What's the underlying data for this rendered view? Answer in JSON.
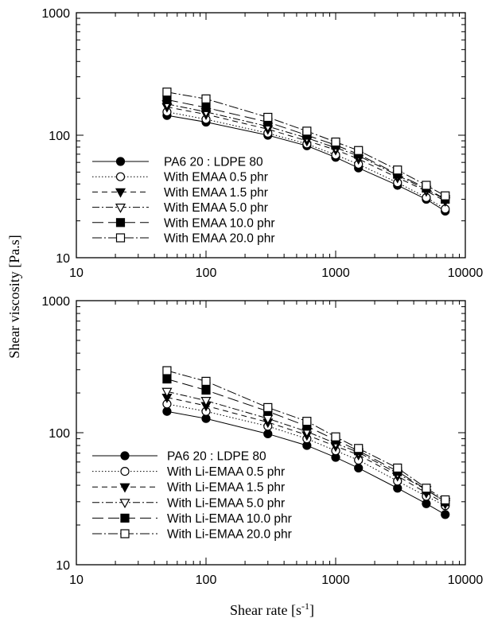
{
  "shared_axis": {
    "ylabel": "Shear viscosity [Pa.s]",
    "xlabel_main": "Shear rate [s",
    "xlabel_sup": "-1",
    "xlabel_end": "]"
  },
  "chart_data": [
    {
      "type": "line",
      "xscale": "log",
      "yscale": "log",
      "xlim": [
        10,
        10000
      ],
      "ylim": [
        10,
        1000
      ],
      "xticks": [
        "10",
        "100",
        "1000",
        "10000"
      ],
      "yticks": [
        "10",
        "100",
        "1000"
      ],
      "grid": false,
      "legend_position": "bottom-left",
      "x": [
        50,
        100,
        300,
        600,
        1000,
        1500,
        3000,
        5000,
        7000
      ],
      "series": [
        {
          "name": "PA6 20 : LDPE 80",
          "marker": "circle-filled",
          "dash": "solid",
          "values": [
            145,
            128,
            100,
            82,
            66,
            54,
            39,
            30,
            24
          ]
        },
        {
          "name": "With EMAA 0.5 phr",
          "marker": "circle-open",
          "dash": "dotted",
          "values": [
            155,
            135,
            104,
            85,
            69,
            58,
            41,
            31,
            25
          ]
        },
        {
          "name": "With EMAA 1.5 phr",
          "marker": "triangle-down-filled",
          "dash": "dashed",
          "values": [
            170,
            148,
            112,
            90,
            76,
            64,
            45,
            35,
            29
          ]
        },
        {
          "name": "With EMAA 5.0 phr",
          "marker": "triangle-down-open",
          "dash": "dashdot",
          "values": [
            180,
            155,
            118,
            95,
            79,
            68,
            47,
            36,
            30
          ]
        },
        {
          "name": "With EMAA 10.0 phr",
          "marker": "square-filled",
          "dash": "longdash",
          "values": [
            195,
            168,
            128,
            100,
            83,
            70,
            48,
            37,
            30
          ]
        },
        {
          "name": "With EMAA 20.0 phr",
          "marker": "square-open",
          "dash": "dashdotlong",
          "values": [
            225,
            198,
            140,
            108,
            88,
            75,
            52,
            39,
            32
          ]
        }
      ]
    },
    {
      "type": "line",
      "xscale": "log",
      "yscale": "log",
      "xlim": [
        10,
        10000
      ],
      "ylim": [
        10,
        1000
      ],
      "xticks": [
        "10",
        "100",
        "1000",
        "10000"
      ],
      "yticks": [
        "10",
        "100",
        "1000"
      ],
      "grid": false,
      "legend_position": "bottom-left",
      "x": [
        50,
        100,
        300,
        600,
        1000,
        1500,
        3000,
        5000,
        7000
      ],
      "series": [
        {
          "name": "PA6 20 : LDPE 80",
          "marker": "circle-filled",
          "dash": "solid",
          "values": [
            145,
            128,
            98,
            80,
            65,
            54,
            38,
            29,
            24
          ]
        },
        {
          "name": "With Li-EMAA 0.5 phr",
          "marker": "circle-open",
          "dash": "dotted",
          "values": [
            165,
            145,
            112,
            90,
            73,
            62,
            43,
            33,
            28
          ]
        },
        {
          "name": "With Li-EMAA 1.5 phr",
          "marker": "triangle-down-filled",
          "dash": "dashed",
          "values": [
            185,
            160,
            120,
            96,
            79,
            68,
            47,
            35,
            29
          ]
        },
        {
          "name": "With Li-EMAA 5.0 phr",
          "marker": "triangle-down-open",
          "dash": "dashdot",
          "values": [
            205,
            175,
            128,
            102,
            83,
            71,
            49,
            37,
            30
          ]
        },
        {
          "name": "With Li-EMAA 10.0 phr",
          "marker": "square-filled",
          "dash": "longdash",
          "values": [
            255,
            210,
            145,
            112,
            88,
            73,
            51,
            37,
            30
          ]
        },
        {
          "name": "With Li-EMAA 20.0 phr",
          "marker": "square-open",
          "dash": "dashdotlong",
          "values": [
            295,
            245,
            155,
            122,
            93,
            76,
            54,
            38,
            31
          ]
        }
      ]
    }
  ]
}
